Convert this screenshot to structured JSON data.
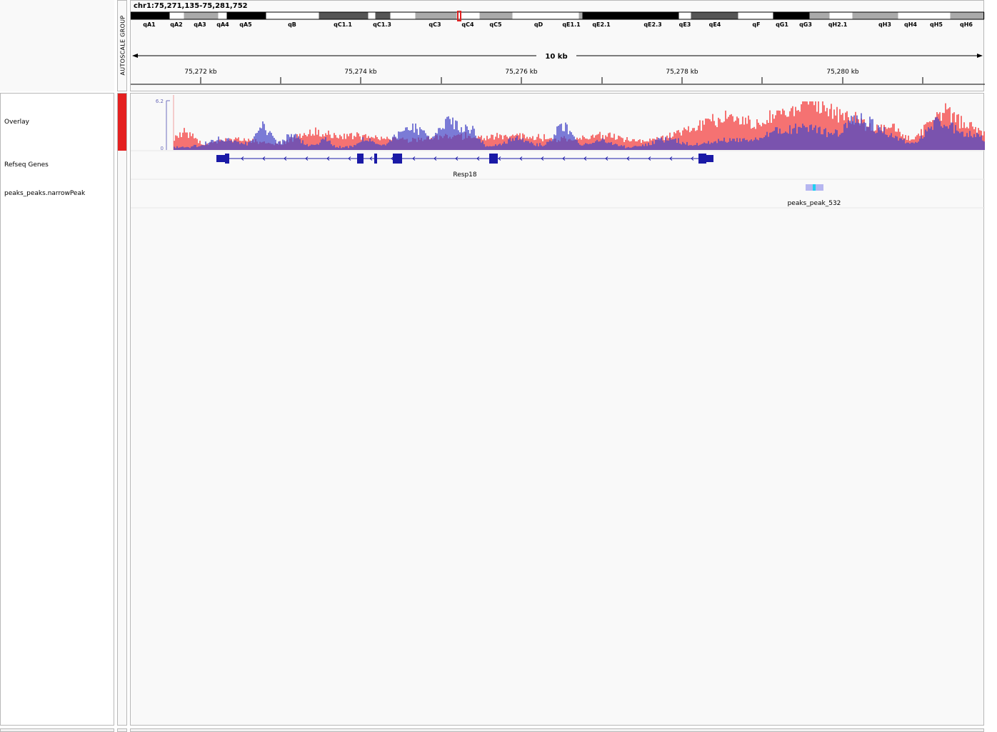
{
  "locus": "chr1:75,271,135-75,281,752",
  "autoscale_label": "AUTOSCALE GROUP",
  "scale_label": "10 kb",
  "ruler_ticks": [
    "75,272 kb",
    "75,274 kb",
    "75,276 kb",
    "75,278 kb",
    "75,280 kb"
  ],
  "cytobands": [
    {
      "name": "qA1",
      "stain": "gpos100"
    },
    {
      "name": "qA2",
      "stain": "gneg"
    },
    {
      "name": "qA3",
      "stain": "gpos50"
    },
    {
      "name": "qA4",
      "stain": "gneg"
    },
    {
      "name": "qA5",
      "stain": "gpos100"
    },
    {
      "name": "qB",
      "stain": "gneg"
    },
    {
      "name": "qC1.1",
      "stain": "gpos75"
    },
    {
      "name": "qC1.3",
      "stain": "gpos75"
    },
    {
      "name": "qC3",
      "stain": "gpos50"
    },
    {
      "name": "qC4",
      "stain": "gneg"
    },
    {
      "name": "qC5",
      "stain": "gpos50"
    },
    {
      "name": "qD",
      "stain": "gneg"
    },
    {
      "name": "qE1.1",
      "stain": "gpos50"
    },
    {
      "name": "qE2.1",
      "stain": "gpos100"
    },
    {
      "name": "qE2.3",
      "stain": "gpos100"
    },
    {
      "name": "qE3",
      "stain": "gneg"
    },
    {
      "name": "qE4",
      "stain": "gpos75"
    },
    {
      "name": "qF",
      "stain": "gneg"
    },
    {
      "name": "qG1",
      "stain": "gpos100"
    },
    {
      "name": "qG3",
      "stain": "gpos100"
    },
    {
      "name": "qH2.1",
      "stain": "gpos50"
    },
    {
      "name": "qH3",
      "stain": "gpos50"
    },
    {
      "name": "qH4",
      "stain": "gpos50"
    },
    {
      "name": "qH5",
      "stain": "gneg"
    },
    {
      "name": "qH6",
      "stain": "gpos50"
    }
  ],
  "tracks": [
    {
      "name": "Overlay",
      "data_range_max": "6.2",
      "data_range_min": "0"
    },
    {
      "name": "Refseq Genes",
      "feature": "Resp18",
      "strand": "-"
    },
    {
      "name": "peaks_peaks.narrowPeak",
      "feature": "peaks_peak_532"
    }
  ],
  "colors": {
    "track_red": "#f55a5a",
    "track_blue": "#4646c8",
    "gene": "#1a1aa6",
    "attribute_red": "#e42020",
    "current_region": "#e02020"
  }
}
